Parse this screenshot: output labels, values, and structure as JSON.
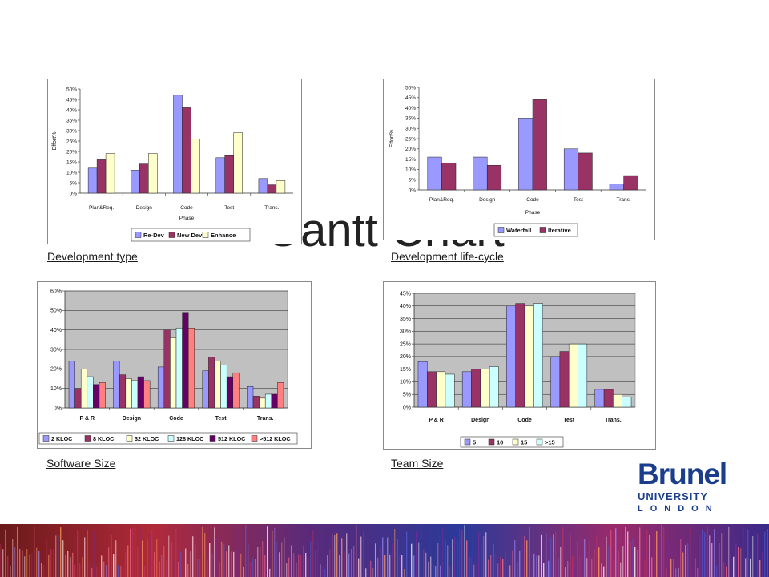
{
  "slide": {
    "title": "Gantt Chart",
    "logo": {
      "line1": "Brunel",
      "line2": "UNIVERSITY",
      "line3": "LONDON"
    }
  },
  "captions": {
    "development_type": "Development type",
    "development_life_cycle": "Development life-cycle",
    "software_size": "Software Size",
    "team_size": "Team Size"
  },
  "colors": {
    "blue": "#9999ff",
    "maroon": "#993366",
    "cream": "#ffffcc",
    "light_cyan": "#ccffff",
    "dark_purple": "#660066",
    "salmon": "#ff8080",
    "plot_gray": "#c0c0c0"
  },
  "chart_data": [
    {
      "type": "bar",
      "caption": "Development type",
      "categories": [
        "Plan&Req.",
        "Design",
        "Code",
        "Test",
        "Trans."
      ],
      "series": [
        {
          "name": "Re-Dev",
          "values": [
            12,
            11,
            47,
            17,
            7
          ]
        },
        {
          "name": "New Dev",
          "values": [
            16,
            14,
            41,
            18,
            4
          ]
        },
        {
          "name": "Enhance",
          "values": [
            19,
            19,
            26,
            29,
            6
          ]
        }
      ],
      "title": "",
      "xlabel": "Phase",
      "ylabel": "Effort%",
      "ylim": [
        0,
        50
      ],
      "yticks": [
        "0%",
        "5%",
        "10%",
        "15%",
        "20%",
        "25%",
        "30%",
        "35%",
        "40%",
        "45%",
        "50%"
      ],
      "grid": false,
      "legend": "bottom"
    },
    {
      "type": "bar",
      "caption": "Development life-cycle",
      "categories": [
        "Plan&Req.",
        "Design",
        "Code",
        "Test",
        "Trans."
      ],
      "series": [
        {
          "name": "Waterfall",
          "values": [
            16,
            16,
            35,
            20,
            3
          ]
        },
        {
          "name": "Iterative",
          "values": [
            13,
            12,
            44,
            18,
            7
          ]
        }
      ],
      "title": "",
      "xlabel": "Phase",
      "ylabel": "Effort%",
      "ylim": [
        0,
        50
      ],
      "yticks": [
        "0%",
        "5%",
        "10%",
        "15%",
        "20%",
        "25%",
        "30%",
        "35%",
        "40%",
        "45%",
        "50%"
      ],
      "grid": false,
      "legend": "bottom"
    },
    {
      "type": "bar",
      "caption": "Software Size",
      "categories": [
        "P & R",
        "Design",
        "Code",
        "Test",
        "Trans."
      ],
      "series": [
        {
          "name": "2 KLOC",
          "values": [
            24,
            24,
            21,
            19,
            11
          ]
        },
        {
          "name": "8 KLOC",
          "values": [
            10,
            17,
            40,
            26,
            6
          ]
        },
        {
          "name": "32 KLOC",
          "values": [
            20,
            15,
            36,
            24,
            5
          ]
        },
        {
          "name": "128 KLOC",
          "values": [
            16,
            14,
            41,
            22,
            7
          ]
        },
        {
          "name": "512 KLOC",
          "values": [
            12,
            16,
            49,
            16,
            7
          ]
        },
        {
          "name": ">512 KLOC",
          "values": [
            13,
            14,
            41,
            18,
            13
          ]
        }
      ],
      "title": "",
      "xlabel": "",
      "ylabel": "",
      "ylim": [
        0,
        60
      ],
      "yticks": [
        "0%",
        "10%",
        "20%",
        "30%",
        "40%",
        "50%",
        "60%"
      ],
      "grid": true,
      "legend": "bottom"
    },
    {
      "type": "bar",
      "caption": "Team Size",
      "categories": [
        "P & R",
        "Design",
        "Code",
        "Test",
        "Trans."
      ],
      "series": [
        {
          "name": "5",
          "values": [
            18,
            14,
            40,
            20,
            7
          ]
        },
        {
          "name": "10",
          "values": [
            14,
            15,
            41,
            22,
            7
          ]
        },
        {
          "name": "15",
          "values": [
            14,
            15,
            40,
            25,
            5
          ]
        },
        {
          "name": ">15",
          "values": [
            13,
            16,
            41,
            25,
            4
          ]
        }
      ],
      "title": "",
      "xlabel": "",
      "ylabel": "",
      "ylim": [
        0,
        45
      ],
      "yticks": [
        "0%",
        "5%",
        "10%",
        "15%",
        "20%",
        "25%",
        "30%",
        "35%",
        "40%",
        "45%"
      ],
      "grid": true,
      "legend": "bottom"
    }
  ]
}
